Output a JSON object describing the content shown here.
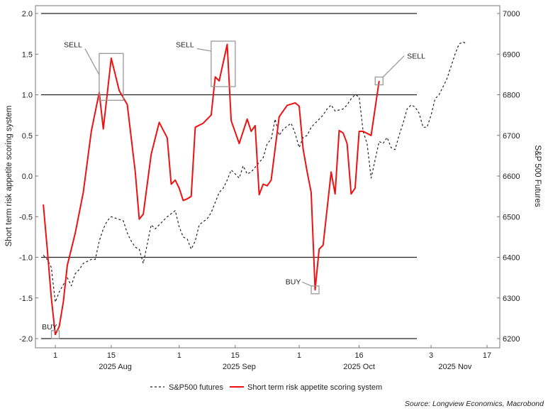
{
  "chart_data": {
    "type": "line",
    "x_axis": {
      "range": [
        "2025-07-29",
        "2025-11-22"
      ],
      "day_ticks": [
        {
          "label": "1",
          "date": "2025-08-01"
        },
        {
          "label": "15",
          "date": "2025-08-15"
        },
        {
          "label": "1",
          "date": "2025-09-01"
        },
        {
          "label": "15",
          "date": "2025-09-15"
        },
        {
          "label": "1",
          "date": "2025-10-01"
        },
        {
          "label": "16",
          "date": "2025-10-16"
        },
        {
          "label": "3",
          "date": "2025-11-03"
        },
        {
          "label": "17",
          "date": "2025-11-17"
        }
      ],
      "month_labels": [
        {
          "label": "2025 Aug",
          "date": "2025-08-16"
        },
        {
          "label": "2025 Sep",
          "date": "2025-09-16"
        },
        {
          "label": "2025 Oct",
          "date": "2025-10-16"
        },
        {
          "label": "2025 Nov",
          "date": "2025-11-09"
        }
      ]
    },
    "y_left": {
      "label": "Short term risk appetite scoring system",
      "range": [
        -2.0,
        2.0
      ],
      "ticks": [
        "2.0",
        "1.5",
        "1.0",
        "0.5",
        "0.0",
        "-0.5",
        "-1.0",
        "-1.5",
        "-2.0"
      ],
      "reference_lines": [
        2.0,
        1.0,
        -1.0,
        -2.0
      ]
    },
    "y_right": {
      "label": "S&P 500 Futures",
      "range": [
        6200,
        7000
      ],
      "ticks": [
        "7000",
        "6900",
        "6800",
        "6700",
        "6600",
        "6500",
        "6400",
        "6300",
        "6200"
      ]
    },
    "series": [
      {
        "name": "S&P500 futures",
        "axis": "right",
        "color": "#222222",
        "style": "dashed",
        "points": [
          [
            "2025-07-29",
            6405
          ],
          [
            "2025-07-30",
            6395
          ],
          [
            "2025-07-31",
            6375
          ],
          [
            "2025-08-01",
            6290
          ],
          [
            "2025-08-02",
            6315
          ],
          [
            "2025-08-04",
            6350
          ],
          [
            "2025-08-05",
            6330
          ],
          [
            "2025-08-06",
            6360
          ],
          [
            "2025-08-07",
            6370
          ],
          [
            "2025-08-08",
            6385
          ],
          [
            "2025-08-10",
            6395
          ],
          [
            "2025-08-11",
            6395
          ],
          [
            "2025-08-12",
            6440
          ],
          [
            "2025-08-13",
            6470
          ],
          [
            "2025-08-14",
            6490
          ],
          [
            "2025-08-15",
            6500
          ],
          [
            "2025-08-18",
            6490
          ],
          [
            "2025-08-19",
            6460
          ],
          [
            "2025-08-20",
            6440
          ],
          [
            "2025-08-21",
            6425
          ],
          [
            "2025-08-22",
            6420
          ],
          [
            "2025-08-23",
            6385
          ],
          [
            "2025-08-25",
            6480
          ],
          [
            "2025-08-26",
            6470
          ],
          [
            "2025-08-27",
            6480
          ],
          [
            "2025-08-28",
            6490
          ],
          [
            "2025-08-29",
            6500
          ],
          [
            "2025-08-31",
            6515
          ],
          [
            "2025-09-01",
            6475
          ],
          [
            "2025-09-02",
            6450
          ],
          [
            "2025-09-03",
            6445
          ],
          [
            "2025-09-04",
            6420
          ],
          [
            "2025-09-05",
            6440
          ],
          [
            "2025-09-06",
            6480
          ],
          [
            "2025-09-08",
            6495
          ],
          [
            "2025-09-09",
            6510
          ],
          [
            "2025-09-10",
            6535
          ],
          [
            "2025-09-11",
            6560
          ],
          [
            "2025-09-12",
            6570
          ],
          [
            "2025-09-13",
            6590
          ],
          [
            "2025-09-14",
            6615
          ],
          [
            "2025-09-15",
            6605
          ],
          [
            "2025-09-16",
            6595
          ],
          [
            "2025-09-17",
            6625
          ],
          [
            "2025-09-18",
            6605
          ],
          [
            "2025-09-19",
            6610
          ],
          [
            "2025-09-22",
            6645
          ],
          [
            "2025-09-23",
            6680
          ],
          [
            "2025-09-24",
            6690
          ],
          [
            "2025-09-25",
            6740
          ],
          [
            "2025-09-26",
            6700
          ],
          [
            "2025-09-27",
            6715
          ],
          [
            "2025-09-29",
            6730
          ],
          [
            "2025-09-30",
            6705
          ],
          [
            "2025-10-01",
            6670
          ],
          [
            "2025-10-02",
            6695
          ],
          [
            "2025-10-03",
            6700
          ],
          [
            "2025-10-04",
            6720
          ],
          [
            "2025-10-06",
            6740
          ],
          [
            "2025-10-07",
            6750
          ],
          [
            "2025-10-08",
            6765
          ],
          [
            "2025-10-09",
            6775
          ],
          [
            "2025-10-10",
            6760
          ],
          [
            "2025-10-12",
            6765
          ],
          [
            "2025-10-13",
            6775
          ],
          [
            "2025-10-14",
            6790
          ],
          [
            "2025-10-15",
            6800
          ],
          [
            "2025-10-16",
            6795
          ],
          [
            "2025-10-17",
            6710
          ],
          [
            "2025-10-18",
            6680
          ],
          [
            "2025-10-19",
            6595
          ],
          [
            "2025-10-21",
            6685
          ],
          [
            "2025-10-22",
            6680
          ],
          [
            "2025-10-23",
            6695
          ],
          [
            "2025-10-24",
            6670
          ],
          [
            "2025-10-25",
            6665
          ],
          [
            "2025-10-26",
            6700
          ],
          [
            "2025-10-27",
            6730
          ],
          [
            "2025-10-28",
            6765
          ],
          [
            "2025-10-29",
            6775
          ],
          [
            "2025-10-30",
            6770
          ],
          [
            "2025-10-31",
            6755
          ],
          [
            "2025-11-01",
            6720
          ],
          [
            "2025-11-02",
            6720
          ],
          [
            "2025-11-03",
            6750
          ],
          [
            "2025-11-04",
            6790
          ],
          [
            "2025-11-05",
            6800
          ],
          [
            "2025-11-06",
            6820
          ],
          [
            "2025-11-07",
            6840
          ],
          [
            "2025-11-08",
            6870
          ],
          [
            "2025-11-09",
            6900
          ],
          [
            "2025-11-10",
            6925
          ],
          [
            "2025-11-11",
            6930
          ],
          [
            "2025-11-12",
            6925
          ]
        ]
      },
      {
        "name": "Short term risk appetite scoring system",
        "axis": "left",
        "color": "#ee1111",
        "style": "solid",
        "points": [
          [
            "2025-07-29",
            -0.35
          ],
          [
            "2025-07-30",
            -0.9
          ],
          [
            "2025-07-31",
            -1.5
          ],
          [
            "2025-08-01",
            -1.95
          ],
          [
            "2025-08-02",
            -1.85
          ],
          [
            "2025-08-03",
            -1.55
          ],
          [
            "2025-08-04",
            -1.1
          ],
          [
            "2025-08-06",
            -0.7
          ],
          [
            "2025-08-08",
            -0.2
          ],
          [
            "2025-08-10",
            0.55
          ],
          [
            "2025-08-12",
            1.03
          ],
          [
            "2025-08-13",
            0.58
          ],
          [
            "2025-08-15",
            1.45
          ],
          [
            "2025-08-17",
            1.05
          ],
          [
            "2025-08-19",
            0.88
          ],
          [
            "2025-08-21",
            0.05
          ],
          [
            "2025-08-22",
            -0.53
          ],
          [
            "2025-08-23",
            -0.47
          ],
          [
            "2025-08-25",
            0.27
          ],
          [
            "2025-08-27",
            0.66
          ],
          [
            "2025-08-29",
            0.47
          ],
          [
            "2025-08-30",
            -0.1
          ],
          [
            "2025-08-31",
            -0.05
          ],
          [
            "2025-09-01",
            -0.15
          ],
          [
            "2025-09-02",
            -0.3
          ],
          [
            "2025-09-03",
            -0.28
          ],
          [
            "2025-09-04",
            -0.25
          ],
          [
            "2025-09-05",
            0.6
          ],
          [
            "2025-09-07",
            0.65
          ],
          [
            "2025-09-09",
            0.75
          ],
          [
            "2025-09-10",
            1.22
          ],
          [
            "2025-09-11",
            1.17
          ],
          [
            "2025-09-13",
            1.62
          ],
          [
            "2025-09-14",
            0.68
          ],
          [
            "2025-09-16",
            0.4
          ],
          [
            "2025-09-18",
            0.7
          ],
          [
            "2025-09-19",
            0.55
          ],
          [
            "2025-09-20",
            0.62
          ],
          [
            "2025-09-21",
            -0.23
          ],
          [
            "2025-09-22",
            -0.1
          ],
          [
            "2025-09-23",
            -0.12
          ],
          [
            "2025-09-24",
            -0.05
          ],
          [
            "2025-09-26",
            0.73
          ],
          [
            "2025-09-28",
            0.87
          ],
          [
            "2025-09-30",
            0.9
          ],
          [
            "2025-10-01",
            0.86
          ],
          [
            "2025-10-02",
            0.33
          ],
          [
            "2025-10-03",
            0.05
          ],
          [
            "2025-10-04",
            -0.2
          ],
          [
            "2025-10-05",
            -1.4
          ],
          [
            "2025-10-06",
            -0.9
          ],
          [
            "2025-10-07",
            -0.85
          ],
          [
            "2025-10-09",
            0.05
          ],
          [
            "2025-10-10",
            -0.22
          ],
          [
            "2025-10-11",
            0.56
          ],
          [
            "2025-10-12",
            0.53
          ],
          [
            "2025-10-13",
            0.4
          ],
          [
            "2025-10-14",
            -0.22
          ],
          [
            "2025-10-15",
            -0.15
          ],
          [
            "2025-10-16",
            0.55
          ],
          [
            "2025-10-17",
            0.55
          ],
          [
            "2025-10-19",
            0.5
          ],
          [
            "2025-10-21",
            1.17
          ]
        ]
      }
    ],
    "annotations": [
      {
        "label": "SELL",
        "box_center": {
          "x": "2025-08-15",
          "y": 1.22
        },
        "label_anchor": {
          "x": "2025-08-07",
          "y": 1.62
        }
      },
      {
        "label": "SELL",
        "box_center": {
          "x": "2025-09-12",
          "y": 1.38
        },
        "label_anchor": {
          "x": "2025-09-04",
          "y": 1.62
        }
      },
      {
        "label": "SELL",
        "box_center": {
          "x": "2025-10-21",
          "y": 1.17
        },
        "label_anchor": {
          "x": "2025-10-28",
          "y": 1.48
        }
      },
      {
        "label": "BUY",
        "box_center": {
          "x": "2025-08-01",
          "y": -1.95
        },
        "label_anchor": {
          "x": "2025-07-29",
          "y": -1.85
        }
      },
      {
        "label": "BUY",
        "box_center": {
          "x": "2025-10-05",
          "y": -1.4
        },
        "label_anchor": {
          "x": "2025-09-30",
          "y": -1.33
        }
      }
    ],
    "legend": {
      "position": "bottom",
      "items": [
        "S&P500 futures",
        "Short term risk appetite scoring system"
      ]
    },
    "source": "Source: Longview Economics, Macrobond",
    "grid": false
  }
}
